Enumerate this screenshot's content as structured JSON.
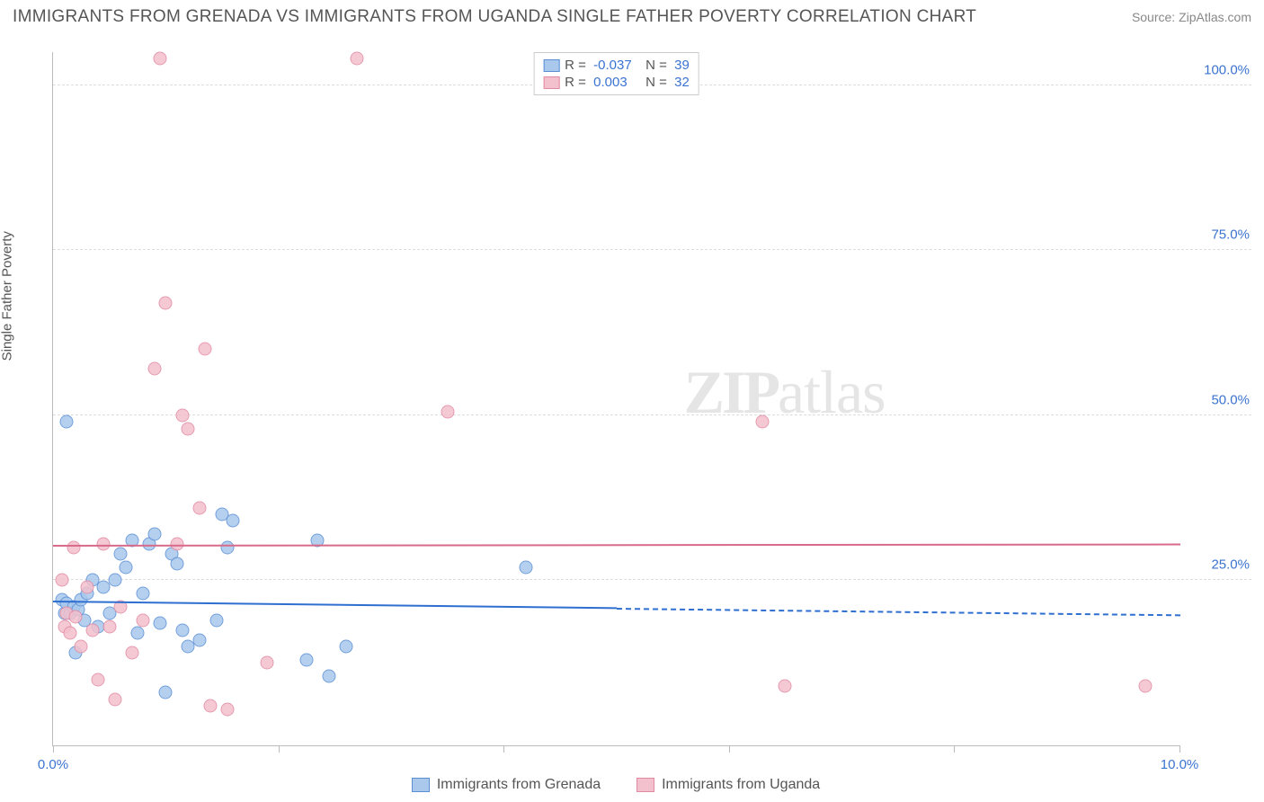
{
  "title": "IMMIGRANTS FROM GRENADA VS IMMIGRANTS FROM UGANDA SINGLE FATHER POVERTY CORRELATION CHART",
  "source": "Source: ZipAtlas.com",
  "ylabel": "Single Father Poverty",
  "watermark_bold": "ZIP",
  "watermark_rest": "atlas",
  "chart": {
    "type": "scatter",
    "xlim": [
      0,
      10
    ],
    "ylim": [
      0,
      105
    ],
    "xtick_positions": [
      0,
      2,
      4,
      6,
      8,
      10
    ],
    "xtick_labels": {
      "0": "0.0%",
      "10": "10.0%"
    },
    "yticks": [
      25,
      50,
      75,
      100
    ],
    "ytick_labels": [
      "25.0%",
      "50.0%",
      "75.0%",
      "100.0%"
    ],
    "background_color": "#ffffff",
    "grid_color": "#dddddd",
    "axis_color": "#bbbbbb",
    "tick_label_color": "#3b73d1",
    "point_radius": 7.5
  },
  "series": [
    {
      "name": "Immigrants from Grenada",
      "color_fill": "#a9c8ec",
      "color_stroke": "#5a8fd6",
      "R": "-0.037",
      "N": "39",
      "trend": {
        "y_at_x0": 22.0,
        "y_at_x10": 20.0,
        "solid_until_x": 5.0,
        "color": "#2f6fd0"
      },
      "points": [
        [
          0.12,
          49.0
        ],
        [
          0.08,
          22.0
        ],
        [
          0.1,
          20.0
        ],
        [
          0.12,
          21.5
        ],
        [
          0.15,
          20.0
        ],
        [
          0.18,
          21.0
        ],
        [
          0.2,
          14.0
        ],
        [
          0.22,
          20.5
        ],
        [
          0.25,
          22.0
        ],
        [
          0.28,
          19.0
        ],
        [
          0.3,
          23.0
        ],
        [
          0.35,
          25.0
        ],
        [
          0.4,
          18.0
        ],
        [
          0.45,
          24.0
        ],
        [
          0.5,
          20.0
        ],
        [
          0.55,
          25.0
        ],
        [
          0.6,
          29.0
        ],
        [
          0.65,
          27.0
        ],
        [
          0.7,
          31.0
        ],
        [
          0.75,
          17.0
        ],
        [
          0.8,
          23.0
        ],
        [
          0.85,
          30.5
        ],
        [
          0.9,
          32.0
        ],
        [
          0.95,
          18.5
        ],
        [
          1.0,
          8.0
        ],
        [
          1.05,
          29.0
        ],
        [
          1.1,
          27.5
        ],
        [
          1.15,
          17.5
        ],
        [
          1.2,
          15.0
        ],
        [
          1.3,
          16.0
        ],
        [
          1.45,
          19.0
        ],
        [
          1.5,
          35.0
        ],
        [
          1.55,
          30.0
        ],
        [
          1.6,
          34.0
        ],
        [
          2.25,
          13.0
        ],
        [
          2.35,
          31.0
        ],
        [
          2.45,
          10.5
        ],
        [
          2.6,
          15.0
        ],
        [
          4.2,
          27.0
        ]
      ]
    },
    {
      "name": "Immigrants from Uganda",
      "color_fill": "#f3c0cd",
      "color_stroke": "#e28aa2",
      "R": "0.003",
      "N": "32",
      "trend": {
        "y_at_x0": 30.5,
        "y_at_x10": 30.7,
        "solid_until_x": 10.0,
        "color": "#d86b8a"
      },
      "points": [
        [
          0.1,
          18.0
        ],
        [
          0.12,
          20.0
        ],
        [
          0.15,
          17.0
        ],
        [
          0.18,
          30.0
        ],
        [
          0.2,
          19.5
        ],
        [
          0.25,
          15.0
        ],
        [
          0.3,
          24.0
        ],
        [
          0.35,
          17.5
        ],
        [
          0.4,
          10.0
        ],
        [
          0.45,
          30.5
        ],
        [
          0.5,
          18.0
        ],
        [
          0.55,
          7.0
        ],
        [
          0.6,
          21.0
        ],
        [
          0.7,
          14.0
        ],
        [
          0.8,
          19.0
        ],
        [
          0.9,
          57.0
        ],
        [
          0.95,
          104.0
        ],
        [
          1.0,
          67.0
        ],
        [
          1.1,
          30.5
        ],
        [
          1.15,
          50.0
        ],
        [
          1.2,
          48.0
        ],
        [
          1.3,
          36.0
        ],
        [
          1.35,
          60.0
        ],
        [
          1.4,
          6.0
        ],
        [
          1.55,
          5.5
        ],
        [
          1.9,
          12.5
        ],
        [
          2.7,
          104.0
        ],
        [
          3.5,
          50.5
        ],
        [
          6.3,
          49.0
        ],
        [
          6.5,
          9.0
        ],
        [
          9.7,
          9.0
        ],
        [
          0.08,
          25.0
        ]
      ]
    }
  ],
  "legend_top_labels": {
    "R": "R =",
    "N": "N ="
  },
  "legend_bottom": [
    {
      "label": "Immigrants from Grenada",
      "fill": "#a9c8ec",
      "stroke": "#5a8fd6"
    },
    {
      "label": "Immigrants from Uganda",
      "fill": "#f3c0cd",
      "stroke": "#e28aa2"
    }
  ]
}
